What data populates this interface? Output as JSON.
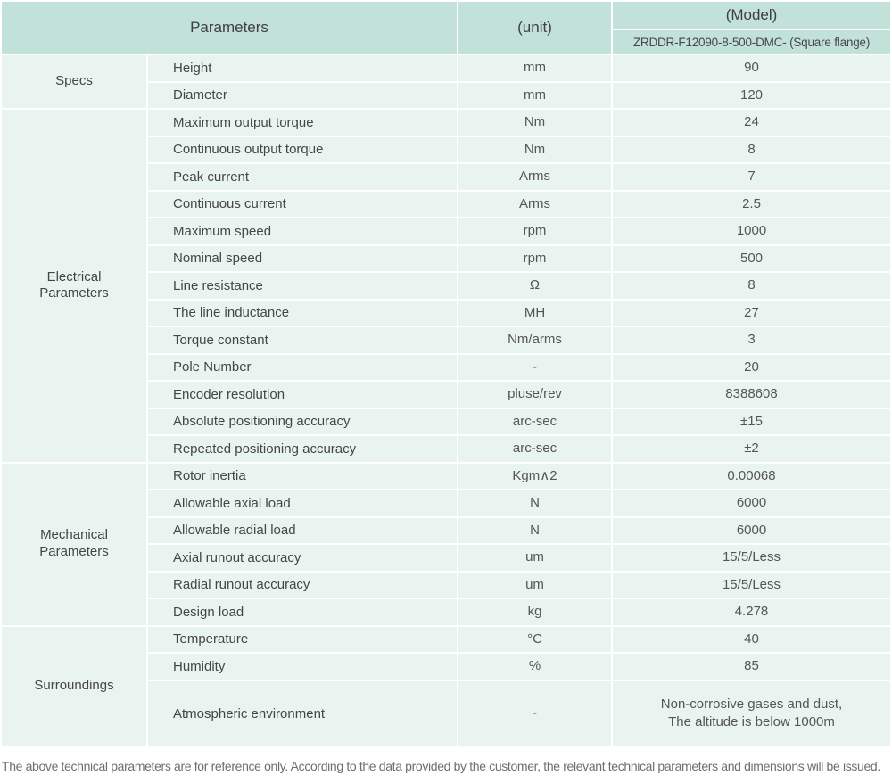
{
  "table": {
    "header": {
      "parameters_label": "Parameters",
      "unit_label": "(unit)",
      "model_label": "(Model)",
      "model_value": "ZRDDR-F12090-8-500-DMC- (Square flange)"
    },
    "sections": [
      {
        "name": "Specs",
        "rows": [
          {
            "parameter": "Height",
            "unit": "mm",
            "value": "90"
          },
          {
            "parameter": "Diameter",
            "unit": "mm",
            "value": "120"
          }
        ]
      },
      {
        "name": "Electrical\nParameters",
        "rows": [
          {
            "parameter": "Maximum output torque",
            "unit": "Nm",
            "value": "24"
          },
          {
            "parameter": "Continuous output torque",
            "unit": "Nm",
            "value": "8"
          },
          {
            "parameter": "Peak current",
            "unit": "Arms",
            "value": "7"
          },
          {
            "parameter": "Continuous current",
            "unit": "Arms",
            "value": "2.5"
          },
          {
            "parameter": "Maximum speed",
            "unit": "rpm",
            "value": "1000"
          },
          {
            "parameter": "Nominal speed",
            "unit": "rpm",
            "value": "500"
          },
          {
            "parameter": "Line resistance",
            "unit": "Ω",
            "value": "8"
          },
          {
            "parameter": "The line inductance",
            "unit": "MH",
            "value": "27"
          },
          {
            "parameter": "Torque constant",
            "unit": "Nm/arms",
            "value": "3"
          },
          {
            "parameter": "Pole Number",
            "unit": "-",
            "value": "20"
          },
          {
            "parameter": "Encoder resolution",
            "unit": "pluse/rev",
            "value": "8388608"
          },
          {
            "parameter": "Absolute positioning accuracy",
            "unit": "arc-sec",
            "value": "±15"
          },
          {
            "parameter": "Repeated positioning accuracy",
            "unit": "arc-sec",
            "value": "±2"
          }
        ]
      },
      {
        "name": "Mechanical\nParameters",
        "rows": [
          {
            "parameter": "Rotor inertia",
            "unit": "Kgm∧2",
            "value": "0.00068"
          },
          {
            "parameter": "Allowable axial load",
            "unit": "N",
            "value": "6000"
          },
          {
            "parameter": "Allowable radial load",
            "unit": "N",
            "value": "6000"
          },
          {
            "parameter": "Axial runout accuracy",
            "unit": "um",
            "value": "15/5/Less"
          },
          {
            "parameter": "Radial runout accuracy",
            "unit": "um",
            "value": "15/5/Less"
          },
          {
            "parameter": "Design load",
            "unit": "kg",
            "value": "4.278"
          }
        ]
      },
      {
        "name": "Surroundings",
        "rows": [
          {
            "parameter": "Temperature",
            "unit": "°C",
            "value": "40"
          },
          {
            "parameter": "Humidity",
            "unit": "%",
            "value": "85"
          },
          {
            "parameter": "Atmospheric environment",
            "unit": "-",
            "value": "Non-corrosive gases and dust,\nThe altitude is below 1000m",
            "tall": true
          }
        ]
      }
    ],
    "footer_note": "The above technical parameters are for reference only. According to the data provided by the customer, the relevant technical parameters and dimensions will be issued."
  },
  "colors": {
    "header_bg": "#c1e1d9",
    "row_bg": "#e9f4f1",
    "gap": "#ffffff",
    "text_dark": "#454545",
    "text_mid": "#555555",
    "footnote_color": "#6e6e6e"
  }
}
